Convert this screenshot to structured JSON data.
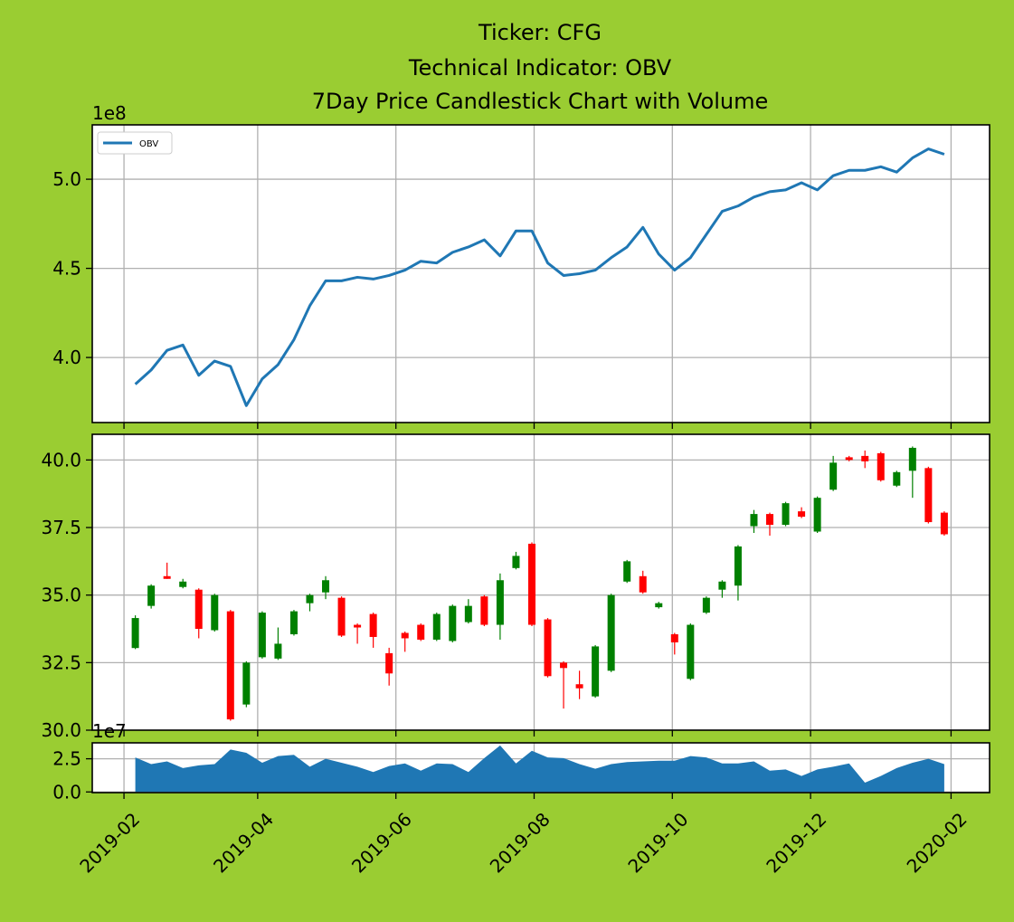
{
  "chart_data": [
    {
      "type": "line",
      "title": [
        "Ticker: CFG",
        "Technical Indicator: OBV",
        "7Day Price Candlestick Chart with Volume"
      ],
      "y_offset_label": "1e8",
      "legend": "upper left",
      "grid": true,
      "x": [
        "2019-02-06",
        "2019-02-13",
        "2019-02-20",
        "2019-02-27",
        "2019-03-06",
        "2019-03-13",
        "2019-03-20",
        "2019-03-27",
        "2019-04-03",
        "2019-04-10",
        "2019-04-17",
        "2019-04-24",
        "2019-05-01",
        "2019-05-08",
        "2019-05-15",
        "2019-05-22",
        "2019-05-29",
        "2019-06-05",
        "2019-06-12",
        "2019-06-19",
        "2019-06-26",
        "2019-07-03",
        "2019-07-10",
        "2019-07-17",
        "2019-07-24",
        "2019-07-31",
        "2019-08-07",
        "2019-08-14",
        "2019-08-21",
        "2019-08-28",
        "2019-09-04",
        "2019-09-11",
        "2019-09-18",
        "2019-09-25",
        "2019-10-02",
        "2019-10-09",
        "2019-10-16",
        "2019-10-23",
        "2019-10-30",
        "2019-11-06",
        "2019-11-13",
        "2019-11-20",
        "2019-11-27",
        "2019-12-04",
        "2019-12-11",
        "2019-12-18",
        "2019-12-25",
        "2020-01-01",
        "2020-01-08",
        "2020-01-15",
        "2020-01-22",
        "2020-01-29"
      ],
      "series": [
        {
          "name": "OBV",
          "color": "#1f77b4",
          "values": [
            3.85,
            3.93,
            4.04,
            4.07,
            3.9,
            3.98,
            3.95,
            3.73,
            3.88,
            3.96,
            4.1,
            4.29,
            4.43,
            4.43,
            4.45,
            4.44,
            4.46,
            4.49,
            4.54,
            4.53,
            4.59,
            4.62,
            4.66,
            4.57,
            4.71,
            4.71,
            4.53,
            4.46,
            4.47,
            4.49,
            4.56,
            4.62,
            4.73,
            4.58,
            4.49,
            4.56,
            4.69,
            4.82,
            4.85,
            4.9,
            4.93,
            4.94,
            4.98,
            4.94,
            5.02,
            5.05,
            5.05,
            5.07,
            5.04,
            5.12,
            5.17,
            5.14
          ]
        }
      ],
      "xlim": [
        "2019-01-18",
        "2020-02-18"
      ],
      "xticks": [
        "2019-02-01",
        "2019-04-01",
        "2019-06-01",
        "2019-08-01",
        "2019-10-01",
        "2019-12-01",
        "2020-02-01"
      ],
      "ylim": [
        3.635,
        5.305
      ],
      "yticks": [
        {
          "value": 4,
          "label": "4.0"
        },
        4.5,
        {
          "value": 5,
          "label": "5.0"
        }
      ]
    },
    {
      "type": "candlestick",
      "grid": true,
      "up_color": "#008000",
      "down_color": "#ff0000",
      "x": [
        "2019-02-06",
        "2019-02-13",
        "2019-02-20",
        "2019-02-27",
        "2019-03-06",
        "2019-03-13",
        "2019-03-20",
        "2019-03-27",
        "2019-04-03",
        "2019-04-10",
        "2019-04-17",
        "2019-04-24",
        "2019-05-01",
        "2019-05-08",
        "2019-05-15",
        "2019-05-22",
        "2019-05-29",
        "2019-06-05",
        "2019-06-12",
        "2019-06-19",
        "2019-06-26",
        "2019-07-03",
        "2019-07-10",
        "2019-07-17",
        "2019-07-24",
        "2019-07-31",
        "2019-08-07",
        "2019-08-14",
        "2019-08-21",
        "2019-08-28",
        "2019-09-04",
        "2019-09-11",
        "2019-09-18",
        "2019-09-25",
        "2019-10-02",
        "2019-10-09",
        "2019-10-16",
        "2019-10-23",
        "2019-10-30",
        "2019-11-06",
        "2019-11-13",
        "2019-11-20",
        "2019-11-27",
        "2019-12-04",
        "2019-12-11",
        "2019-12-18",
        "2019-12-25",
        "2020-01-01",
        "2020-01-08",
        "2020-01-15",
        "2020-01-22",
        "2020-01-29"
      ],
      "open": [
        33.04,
        34.6,
        35.7,
        35.3,
        35.2,
        33.7,
        34.4,
        30.95,
        32.7,
        32.65,
        33.55,
        34.7,
        35.1,
        34.9,
        33.9,
        34.3,
        32.85,
        33.6,
        33.9,
        33.35,
        33.3,
        34.0,
        34.95,
        33.9,
        36.0,
        36.9,
        34.1,
        32.5,
        31.7,
        31.25,
        32.2,
        35.5,
        35.7,
        34.55,
        33.55,
        31.9,
        34.35,
        35.2,
        35.35,
        37.55,
        38.0,
        37.6,
        38.1,
        37.35,
        38.9,
        40.1,
        40.15,
        40.25,
        39.05,
        39.6,
        39.7,
        38.05
      ],
      "high": [
        34.25,
        35.4,
        36.2,
        35.6,
        35.25,
        35.05,
        34.45,
        32.55,
        34.4,
        33.8,
        34.45,
        35.05,
        35.7,
        34.95,
        33.95,
        34.35,
        33.05,
        33.65,
        33.95,
        34.35,
        34.65,
        34.85,
        35.0,
        35.8,
        36.6,
        36.95,
        34.15,
        32.55,
        32.2,
        33.15,
        35.05,
        36.3,
        35.9,
        34.75,
        33.6,
        33.95,
        34.95,
        35.55,
        36.85,
        38.15,
        38.05,
        38.45,
        38.25,
        38.65,
        40.15,
        40.15,
        40.35,
        40.3,
        39.6,
        40.5,
        39.75,
        38.1
      ],
      "low": [
        33.0,
        34.5,
        35.6,
        35.25,
        33.4,
        33.65,
        30.35,
        30.85,
        32.65,
        32.6,
        33.5,
        34.4,
        34.85,
        33.45,
        33.2,
        33.05,
        31.65,
        32.9,
        33.3,
        33.3,
        33.25,
        33.95,
        33.85,
        33.35,
        35.95,
        33.85,
        31.95,
        30.8,
        31.15,
        31.2,
        32.15,
        35.45,
        35.05,
        34.5,
        32.8,
        31.85,
        34.3,
        34.9,
        34.8,
        37.3,
        37.2,
        37.55,
        37.85,
        37.3,
        38.85,
        39.95,
        39.7,
        39.2,
        39.0,
        38.6,
        37.65,
        37.2
      ],
      "close": [
        34.15,
        35.35,
        35.6,
        35.5,
        33.75,
        35.0,
        30.4,
        32.5,
        34.35,
        33.2,
        34.4,
        35.0,
        35.55,
        33.5,
        33.8,
        33.45,
        32.1,
        33.4,
        33.35,
        34.3,
        34.6,
        34.6,
        33.9,
        35.55,
        36.45,
        33.9,
        32.0,
        32.3,
        31.55,
        33.1,
        35.0,
        36.25,
        35.1,
        34.7,
        33.25,
        33.9,
        34.9,
        35.5,
        36.8,
        38.0,
        37.6,
        38.4,
        37.9,
        38.6,
        39.9,
        40.0,
        39.95,
        39.25,
        39.55,
        40.45,
        37.7,
        37.25
      ],
      "xlim": [
        "2019-01-18",
        "2020-02-18"
      ],
      "xticks": [
        "2019-02-01",
        "2019-04-01",
        "2019-06-01",
        "2019-08-01",
        "2019-10-01",
        "2019-12-01",
        "2020-02-01"
      ],
      "ylim": [
        30,
        40.95
      ],
      "yticks": [
        {
          "value": 30,
          "label": "30.0"
        },
        32.5,
        {
          "value": 35,
          "label": "35.0"
        },
        37.5,
        {
          "value": 40,
          "label": "40.0"
        }
      ]
    },
    {
      "type": "area",
      "grid": true,
      "y_offset_label": "1e7",
      "color": "#1f77b4",
      "x": [
        "2019-02-06",
        "2019-02-13",
        "2019-02-20",
        "2019-02-27",
        "2019-03-06",
        "2019-03-13",
        "2019-03-20",
        "2019-03-27",
        "2019-04-03",
        "2019-04-10",
        "2019-04-17",
        "2019-04-24",
        "2019-05-01",
        "2019-05-08",
        "2019-05-15",
        "2019-05-22",
        "2019-05-29",
        "2019-06-05",
        "2019-06-12",
        "2019-06-19",
        "2019-06-26",
        "2019-07-03",
        "2019-07-10",
        "2019-07-17",
        "2019-07-24",
        "2019-07-31",
        "2019-08-07",
        "2019-08-14",
        "2019-08-21",
        "2019-08-28",
        "2019-09-04",
        "2019-09-11",
        "2019-09-18",
        "2019-09-25",
        "2019-10-02",
        "2019-10-09",
        "2019-10-16",
        "2019-10-23",
        "2019-10-30",
        "2019-11-06",
        "2019-11-13",
        "2019-11-20",
        "2019-11-27",
        "2019-12-04",
        "2019-12-11",
        "2019-12-18",
        "2019-12-25",
        "2020-01-01",
        "2020-01-08",
        "2020-01-15",
        "2020-01-22",
        "2020-01-29"
      ],
      "values": [
        2.6,
        2.1,
        2.3,
        1.8,
        2.0,
        2.1,
        3.2,
        2.95,
        2.2,
        2.7,
        2.8,
        1.9,
        2.5,
        2.2,
        1.9,
        1.5,
        1.95,
        2.15,
        1.6,
        2.15,
        2.1,
        1.5,
        2.55,
        3.5,
        2.15,
        3.1,
        2.6,
        2.55,
        2.1,
        1.75,
        2.1,
        2.25,
        2.3,
        2.35,
        2.35,
        2.7,
        2.6,
        2.15,
        2.15,
        2.3,
        1.6,
        1.7,
        1.2,
        1.7,
        1.9,
        2.15,
        0.7,
        1.2,
        1.8,
        2.2,
        2.5,
        2.1
      ],
      "xlim": [
        "2019-01-18",
        "2020-02-18"
      ],
      "xticks": [
        {
          "value": "2019-02-01",
          "label": "2019-02"
        },
        {
          "value": "2019-04-01",
          "label": "2019-04"
        },
        {
          "value": "2019-06-01",
          "label": "2019-06"
        },
        {
          "value": "2019-08-01",
          "label": "2019-08"
        },
        {
          "value": "2019-10-01",
          "label": "2019-10"
        },
        {
          "value": "2019-12-01",
          "label": "2019-12"
        },
        {
          "value": "2020-02-01",
          "label": "2020-02"
        }
      ],
      "ylim": [
        -0.05,
        3.7
      ],
      "yticks": [
        {
          "value": 0,
          "label": "0.0"
        },
        2.5
      ]
    }
  ]
}
